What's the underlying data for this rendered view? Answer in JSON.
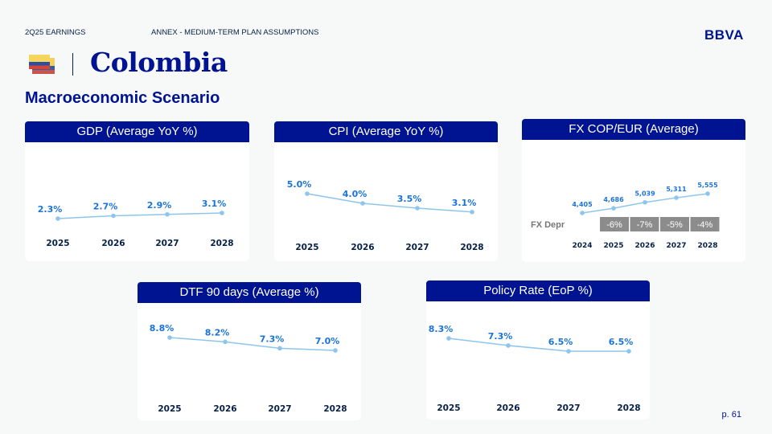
{
  "header": {
    "section": "2Q25 EARNINGS",
    "annex": "ANNEX - MEDIUM-TERM PLAN ASSUMPTIONS",
    "brand": "BBVA",
    "country": "Colombia",
    "subtitle": "Macroeconomic Scenario",
    "page": "p. 61"
  },
  "colors": {
    "brand": "#001391",
    "line": "#8ec5ec",
    "label": "#1a73d9",
    "depr_box": "#8c8c8c"
  },
  "chart_data": [
    {
      "id": "gdp",
      "type": "line",
      "title": "GDP (Average YoY %)",
      "categories": [
        "2025",
        "2026",
        "2027",
        "2028"
      ],
      "values": [
        2.3,
        2.7,
        2.9,
        3.1
      ],
      "labels": [
        "2.3%",
        "2.7%",
        "2.9%",
        "3.1%"
      ]
    },
    {
      "id": "cpi",
      "type": "line",
      "title": "CPI (Average YoY %)",
      "categories": [
        "2025",
        "2026",
        "2027",
        "2028"
      ],
      "values": [
        5.0,
        4.0,
        3.5,
        3.1
      ],
      "labels": [
        "5.0%",
        "4.0%",
        "3.5%",
        "3.1%"
      ]
    },
    {
      "id": "fx",
      "type": "line",
      "title": "FX COP/EUR (Average)",
      "categories": [
        "2024",
        "2025",
        "2026",
        "2027",
        "2028"
      ],
      "values": [
        4405,
        4686,
        5039,
        5311,
        5555
      ],
      "labels": [
        "4,405",
        "4,686",
        "5,039",
        "5,311",
        "5,555"
      ],
      "depr_label": "FX Depr",
      "depr": [
        "-6%",
        "-7%",
        "-5%",
        "-4%"
      ]
    },
    {
      "id": "dtf",
      "type": "line",
      "title": "DTF 90 days (Average %)",
      "categories": [
        "2025",
        "2026",
        "2027",
        "2028"
      ],
      "values": [
        8.8,
        8.2,
        7.3,
        7.0
      ],
      "labels": [
        "8.8%",
        "8.2%",
        "7.3%",
        "7.0%"
      ]
    },
    {
      "id": "policy",
      "type": "line",
      "title": "Policy Rate (EoP %)",
      "categories": [
        "2025",
        "2026",
        "2027",
        "2028"
      ],
      "values": [
        8.3,
        7.3,
        6.5,
        6.5
      ],
      "labels": [
        "8.3%",
        "7.3%",
        "6.5%",
        "6.5%"
      ]
    }
  ]
}
